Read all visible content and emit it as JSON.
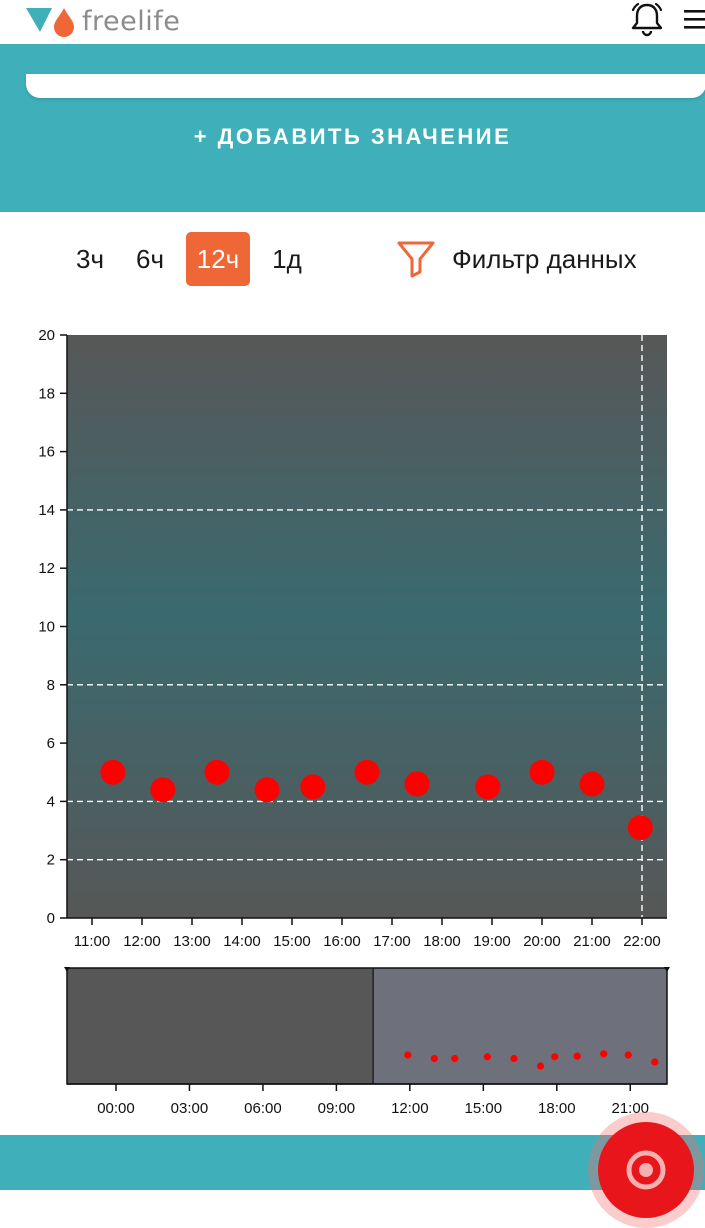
{
  "header": {
    "brand": "freelife",
    "logo_icon": "freelife-logo",
    "notifications_icon": "bell-icon",
    "menu_icon": "hamburger-menu-icon"
  },
  "actions": {
    "add_value_label": "+ ДОБАВИТЬ ЗНАЧЕНИЕ"
  },
  "range_tabs": [
    {
      "label": "3ч",
      "active": false
    },
    {
      "label": "6ч",
      "active": false
    },
    {
      "label": "12ч",
      "active": true
    },
    {
      "label": "1д",
      "active": false
    }
  ],
  "filter": {
    "label": "Фильтр данных",
    "icon": "funnel-icon"
  },
  "colors": {
    "teal": "#3fb0ba",
    "accent_orange": "#ef6637",
    "point_red": "#ff0000",
    "plot_gray": "#575757",
    "plot_teal": "#3a6a6f",
    "overview_selected": "#6e717b"
  },
  "chart_data": [
    {
      "type": "scatter",
      "x_ticks": [
        "11:00",
        "12:00",
        "13:00",
        "14:00",
        "15:00",
        "16:00",
        "17:00",
        "18:00",
        "19:00",
        "20:00",
        "21:00",
        "22:00"
      ],
      "y_ticks": [
        0,
        2,
        4,
        6,
        8,
        10,
        12,
        14,
        16,
        18,
        20
      ],
      "ylim": [
        0,
        20
      ],
      "xlim": [
        "10:30",
        "22:30"
      ],
      "grid_y_dashed": [
        2,
        4,
        8,
        14
      ],
      "current_time_marker": "22:00",
      "points": [
        {
          "x": "11:25",
          "y": 5.0
        },
        {
          "x": "12:25",
          "y": 4.4
        },
        {
          "x": "13:30",
          "y": 5.0
        },
        {
          "x": "14:30",
          "y": 4.4
        },
        {
          "x": "15:25",
          "y": 4.5
        },
        {
          "x": "16:30",
          "y": 5.0
        },
        {
          "x": "17:30",
          "y": 4.6
        },
        {
          "x": "18:55",
          "y": 4.5
        },
        {
          "x": "20:00",
          "y": 5.0
        },
        {
          "x": "21:00",
          "y": 4.6
        },
        {
          "x": "21:58",
          "y": 3.1
        }
      ]
    },
    {
      "type": "scatter",
      "x_ticks": [
        "00:00",
        "03:00",
        "06:00",
        "09:00",
        "12:00",
        "15:00",
        "18:00",
        "21:00"
      ],
      "xlim": [
        "22:00",
        "22:30"
      ],
      "ylim": [
        0,
        20
      ],
      "selected_window": [
        "10:30",
        "22:30"
      ],
      "points": [
        {
          "x": "11:55",
          "y": 5.0
        },
        {
          "x": "13:00",
          "y": 4.4
        },
        {
          "x": "13:50",
          "y": 4.4
        },
        {
          "x": "15:10",
          "y": 4.7
        },
        {
          "x": "16:15",
          "y": 4.4
        },
        {
          "x": "17:20",
          "y": 3.1
        },
        {
          "x": "17:55",
          "y": 4.7
        },
        {
          "x": "18:50",
          "y": 4.8
        },
        {
          "x": "19:55",
          "y": 5.2
        },
        {
          "x": "20:55",
          "y": 5.0
        },
        {
          "x": "22:00",
          "y": 3.8
        }
      ]
    }
  ]
}
